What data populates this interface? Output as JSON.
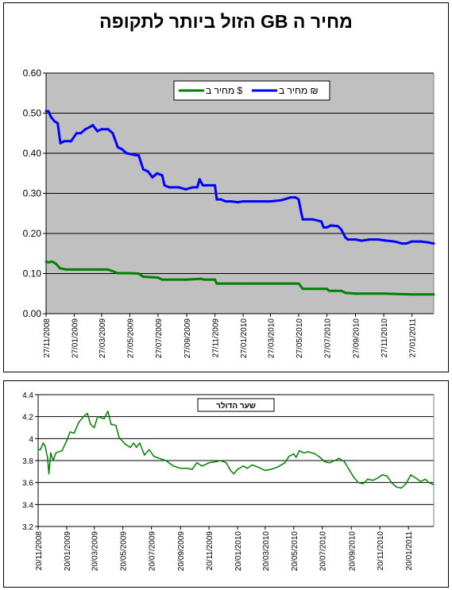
{
  "chart_data": [
    {
      "type": "line",
      "title": "מחיר ה GB הזול ביותר לתקופה",
      "ylim": [
        0,
        0.6
      ],
      "yticks": [
        "0.00",
        "0.10",
        "0.20",
        "0.30",
        "0.40",
        "0.50",
        "0.60"
      ],
      "x_start": "27/11/2008",
      "x_end": "15/03/2011",
      "xtick_labels": [
        "27/11/2008",
        "27/01/2009",
        "27/03/2009",
        "27/05/2009",
        "27/07/2009",
        "27/09/2009",
        "27/11/2009",
        "27/01/2010",
        "27/03/2010",
        "27/05/2010",
        "27/07/2010",
        "27/09/2010",
        "27/11/2010",
        "27/01/2011"
      ],
      "grid": true,
      "legend_placement": "top-center",
      "colors": {
        "plot_bg": "#c0c0c0",
        "ils": "#0000ff",
        "usd": "#008000"
      },
      "series": [
        {
          "name": "מחיר ב ₪",
          "color": "#0000ff",
          "points": [
            [
              "27/11/2008",
              0.505
            ],
            [
              "02/12/2008",
              0.505
            ],
            [
              "08/12/2008",
              0.49
            ],
            [
              "15/12/2008",
              0.48
            ],
            [
              "22/12/2008",
              0.475
            ],
            [
              "28/12/2008",
              0.425
            ],
            [
              "05/01/2009",
              0.43
            ],
            [
              "20/01/2009",
              0.43
            ],
            [
              "01/02/2009",
              0.45
            ],
            [
              "10/02/2009",
              0.45
            ],
            [
              "20/02/2009",
              0.46
            ],
            [
              "01/03/2009",
              0.465
            ],
            [
              "08/03/2009",
              0.47
            ],
            [
              "18/03/2009",
              0.455
            ],
            [
              "27/03/2009",
              0.46
            ],
            [
              "10/04/2009",
              0.46
            ],
            [
              "20/04/2009",
              0.45
            ],
            [
              "01/05/2009",
              0.415
            ],
            [
              "10/05/2009",
              0.41
            ],
            [
              "20/05/2009",
              0.4
            ],
            [
              "10/06/2009",
              0.395
            ],
            [
              "15/06/2009",
              0.395
            ],
            [
              "25/06/2009",
              0.36
            ],
            [
              "05/07/2009",
              0.355
            ],
            [
              "15/07/2009",
              0.34
            ],
            [
              "25/07/2009",
              0.35
            ],
            [
              "05/08/2009",
              0.345
            ],
            [
              "10/08/2009",
              0.32
            ],
            [
              "20/08/2009",
              0.315
            ],
            [
              "10/09/2009",
              0.315
            ],
            [
              "25/09/2009",
              0.31
            ],
            [
              "10/10/2009",
              0.315
            ],
            [
              "20/10/2009",
              0.315
            ],
            [
              "25/10/2009",
              0.335
            ],
            [
              "01/11/2009",
              0.32
            ],
            [
              "10/11/2009",
              0.32
            ],
            [
              "27/11/2009",
              0.32
            ],
            [
              "01/12/2009",
              0.285
            ],
            [
              "10/12/2009",
              0.285
            ],
            [
              "20/12/2009",
              0.28
            ],
            [
              "01/01/2010",
              0.28
            ],
            [
              "15/01/2010",
              0.278
            ],
            [
              "27/01/2010",
              0.28
            ],
            [
              "20/02/2010",
              0.28
            ],
            [
              "10/03/2010",
              0.28
            ],
            [
              "27/03/2010",
              0.28
            ],
            [
              "20/04/2010",
              0.283
            ],
            [
              "10/05/2010",
              0.29
            ],
            [
              "20/05/2010",
              0.29
            ],
            [
              "27/05/2010",
              0.285
            ],
            [
              "01/06/2010",
              0.255
            ],
            [
              "05/06/2010",
              0.235
            ],
            [
              "27/06/2010",
              0.235
            ],
            [
              "15/07/2010",
              0.23
            ],
            [
              "20/07/2010",
              0.215
            ],
            [
              "27/07/2010",
              0.215
            ],
            [
              "05/08/2010",
              0.22
            ],
            [
              "20/08/2010",
              0.218
            ],
            [
              "27/08/2010",
              0.21
            ],
            [
              "05/09/2010",
              0.19
            ],
            [
              "10/09/2010",
              0.185
            ],
            [
              "27/09/2010",
              0.185
            ],
            [
              "10/10/2010",
              0.182
            ],
            [
              "27/10/2010",
              0.185
            ],
            [
              "15/11/2010",
              0.185
            ],
            [
              "27/11/2010",
              0.183
            ],
            [
              "20/12/2010",
              0.18
            ],
            [
              "05/01/2011",
              0.175
            ],
            [
              "15/01/2011",
              0.175
            ],
            [
              "27/01/2011",
              0.18
            ],
            [
              "15/02/2011",
              0.18
            ],
            [
              "01/03/2011",
              0.178
            ],
            [
              "15/03/2011",
              0.175
            ]
          ]
        },
        {
          "name": "מחיר ב $",
          "color": "#008000",
          "points": [
            [
              "27/11/2008",
              0.13
            ],
            [
              "02/12/2008",
              0.128
            ],
            [
              "10/12/2008",
              0.13
            ],
            [
              "18/12/2008",
              0.125
            ],
            [
              "27/12/2008",
              0.113
            ],
            [
              "10/01/2009",
              0.11
            ],
            [
              "27/01/2009",
              0.11
            ],
            [
              "27/03/2009",
              0.11
            ],
            [
              "10/04/2009",
              0.11
            ],
            [
              "01/05/2009",
              0.101
            ],
            [
              "27/05/2009",
              0.101
            ],
            [
              "15/06/2009",
              0.1
            ],
            [
              "25/06/2009",
              0.092
            ],
            [
              "27/07/2009",
              0.09
            ],
            [
              "05/08/2009",
              0.085
            ],
            [
              "27/09/2009",
              0.085
            ],
            [
              "27/10/2009",
              0.087
            ],
            [
              "05/11/2009",
              0.085
            ],
            [
              "27/11/2009",
              0.085
            ],
            [
              "01/12/2009",
              0.075
            ],
            [
              "27/01/2010",
              0.075
            ],
            [
              "27/03/2010",
              0.075
            ],
            [
              "27/05/2010",
              0.075
            ],
            [
              "05/06/2010",
              0.062
            ],
            [
              "27/07/2010",
              0.062
            ],
            [
              "01/08/2010",
              0.057
            ],
            [
              "27/08/2010",
              0.057
            ],
            [
              "05/09/2010",
              0.052
            ],
            [
              "27/09/2010",
              0.05
            ],
            [
              "27/10/2010",
              0.05
            ],
            [
              "27/11/2010",
              0.05
            ],
            [
              "27/12/2010",
              0.049
            ],
            [
              "27/01/2011",
              0.048
            ],
            [
              "15/03/2011",
              0.048
            ]
          ]
        }
      ]
    },
    {
      "type": "line",
      "title": "שער הדולר",
      "ylim": [
        3.2,
        4.4
      ],
      "yticks": [
        "3.2",
        "3.4",
        "3.6",
        "3.8",
        "4",
        "4.2",
        "4.4"
      ],
      "x_start": "20/11/2008",
      "x_end": "15/03/2011",
      "xtick_labels": [
        "20/11/2008",
        "20/01/2009",
        "20/03/2009",
        "20/05/2009",
        "20/07/2009",
        "20/09/2009",
        "20/11/2009",
        "20/01/2010",
        "20/03/2010",
        "20/05/2010",
        "20/07/2010",
        "20/09/2010",
        "20/11/2010",
        "20/01/2011"
      ],
      "grid": true,
      "legend_placement": "top-center",
      "colors": {
        "plot_bg": "#ffffff",
        "line": "#008000"
      },
      "series": [
        {
          "name": "",
          "color": "#008000",
          "points": [
            [
              "20/11/2008",
              3.9
            ],
            [
              "25/11/2008",
              3.9
            ],
            [
              "01/12/2008",
              3.96
            ],
            [
              "05/12/2008",
              3.93
            ],
            [
              "10/12/2008",
              3.83
            ],
            [
              "13/12/2008",
              3.68
            ],
            [
              "17/12/2008",
              3.87
            ],
            [
              "22/12/2008",
              3.8
            ],
            [
              "28/12/2008",
              3.87
            ],
            [
              "10/01/2009",
              3.89
            ],
            [
              "20/01/2009",
              3.98
            ],
            [
              "27/01/2009",
              4.06
            ],
            [
              "05/02/2009",
              4.05
            ],
            [
              "15/02/2009",
              4.15
            ],
            [
              "25/02/2009",
              4.2
            ],
            [
              "05/03/2009",
              4.23
            ],
            [
              "12/03/2009",
              4.13
            ],
            [
              "20/03/2009",
              4.1
            ],
            [
              "27/03/2009",
              4.2
            ],
            [
              "10/04/2009",
              4.18
            ],
            [
              "18/04/2009",
              4.25
            ],
            [
              "25/04/2009",
              4.13
            ],
            [
              "05/05/2009",
              4.12
            ],
            [
              "12/05/2009",
              4.01
            ],
            [
              "25/05/2009",
              3.95
            ],
            [
              "05/06/2009",
              3.92
            ],
            [
              "12/06/2009",
              3.96
            ],
            [
              "18/06/2009",
              3.92
            ],
            [
              "25/06/2009",
              3.96
            ],
            [
              "05/07/2009",
              3.85
            ],
            [
              "15/07/2009",
              3.9
            ],
            [
              "25/07/2009",
              3.84
            ],
            [
              "05/08/2009",
              3.82
            ],
            [
              "20/08/2009",
              3.8
            ],
            [
              "05/09/2009",
              3.75
            ],
            [
              "20/09/2009",
              3.73
            ],
            [
              "05/10/2009",
              3.73
            ],
            [
              "15/10/2009",
              3.72
            ],
            [
              "25/10/2009",
              3.78
            ],
            [
              "05/11/2009",
              3.75
            ],
            [
              "20/11/2009",
              3.78
            ],
            [
              "05/12/2009",
              3.79
            ],
            [
              "15/12/2009",
              3.8
            ],
            [
              "27/12/2009",
              3.78
            ],
            [
              "05/01/2010",
              3.71
            ],
            [
              "12/01/2010",
              3.68
            ],
            [
              "20/01/2010",
              3.72
            ],
            [
              "01/02/2010",
              3.75
            ],
            [
              "10/02/2010",
              3.73
            ],
            [
              "20/02/2010",
              3.76
            ],
            [
              "05/03/2010",
              3.74
            ],
            [
              "20/03/2010",
              3.71
            ],
            [
              "01/04/2010",
              3.72
            ],
            [
              "15/04/2010",
              3.74
            ],
            [
              "01/05/2010",
              3.78
            ],
            [
              "10/05/2010",
              3.84
            ],
            [
              "20/05/2010",
              3.86
            ],
            [
              "25/05/2010",
              3.83
            ],
            [
              "01/06/2010",
              3.89
            ],
            [
              "10/06/2010",
              3.87
            ],
            [
              "20/06/2010",
              3.88
            ],
            [
              "05/07/2010",
              3.86
            ],
            [
              "15/07/2010",
              3.83
            ],
            [
              "25/07/2010",
              3.79
            ],
            [
              "05/08/2010",
              3.78
            ],
            [
              "15/08/2010",
              3.8
            ],
            [
              "25/08/2010",
              3.82
            ],
            [
              "05/09/2010",
              3.79
            ],
            [
              "15/09/2010",
              3.72
            ],
            [
              "25/09/2010",
              3.65
            ],
            [
              "05/10/2010",
              3.6
            ],
            [
              "15/10/2010",
              3.59
            ],
            [
              "25/10/2010",
              3.63
            ],
            [
              "05/11/2010",
              3.62
            ],
            [
              "15/11/2010",
              3.64
            ],
            [
              "25/11/2010",
              3.67
            ],
            [
              "05/12/2010",
              3.66
            ],
            [
              "15/12/2010",
              3.6
            ],
            [
              "25/12/2010",
              3.56
            ],
            [
              "05/01/2011",
              3.55
            ],
            [
              "15/01/2011",
              3.59
            ],
            [
              "25/01/2011",
              3.67
            ],
            [
              "05/02/2011",
              3.64
            ],
            [
              "15/02/2011",
              3.61
            ],
            [
              "25/02/2011",
              3.63
            ],
            [
              "05/03/2011",
              3.6
            ],
            [
              "15/03/2011",
              3.58
            ]
          ]
        }
      ]
    }
  ]
}
